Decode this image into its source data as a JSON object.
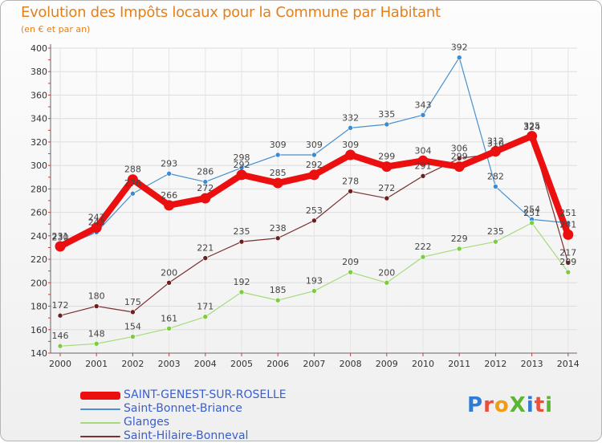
{
  "title": "Evolution des Impôts locaux pour la Commune par Habitant",
  "subtitle": "(en € et par an)",
  "logo": {
    "text": "ProXiti",
    "colors": [
      "#2f7bd6",
      "#e8503a",
      "#f39c12",
      "#5bb531",
      "#2f7bd6",
      "#e8503a",
      "#5bb531"
    ]
  },
  "chart_data": {
    "type": "line",
    "x": [
      "2000",
      "2001",
      "2002",
      "2003",
      "2004",
      "2005",
      "2006",
      "2007",
      "2008",
      "2009",
      "2010",
      "2011",
      "2012",
      "2013",
      "2014"
    ],
    "ylim": [
      140,
      400
    ],
    "yticks": [
      140,
      160,
      180,
      200,
      220,
      240,
      260,
      280,
      300,
      320,
      340,
      360,
      380,
      400
    ],
    "grid": true,
    "legend_position": "bottom-left",
    "series": [
      {
        "name": "Saint-Bonnet-Briance",
        "color": "#4a90cf",
        "marker": "#3a8ad6",
        "values": [
          230,
          243,
          276,
          293,
          286,
          298,
          309,
          309,
          332,
          335,
          343,
          392,
          282,
          254,
          251
        ],
        "labels": [
          "230",
          "243",
          "276",
          "293",
          "286",
          "298",
          "309",
          "309",
          "332",
          "335",
          "343",
          "392",
          "282",
          "254",
          "251"
        ]
      },
      {
        "name": "Glanges",
        "color": "#a6db7c",
        "marker": "#7ccc40",
        "values": [
          146,
          148,
          154,
          161,
          171,
          192,
          185,
          193,
          209,
          200,
          222,
          229,
          235,
          251,
          209
        ],
        "labels": [
          "146",
          "148",
          "154",
          "161",
          "171",
          "192",
          "185",
          "193",
          "209",
          "200",
          "222",
          "229",
          "235",
          "251",
          "209"
        ]
      },
      {
        "name": "Saint-Hilaire-Bonneval",
        "color": "#7a3030",
        "marker": "#6b1f1f",
        "values": [
          172,
          180,
          175,
          200,
          221,
          235,
          238,
          253,
          278,
          272,
          291,
          306,
          310,
          324,
          217
        ],
        "labels": [
          "172",
          "180",
          "175",
          "200",
          "221",
          "235",
          "238",
          "253",
          "278",
          "272",
          "291",
          "306",
          "310",
          "324",
          "217"
        ]
      },
      {
        "name": "SAINT-GENEST-SUR-ROSELLE",
        "color": "#ec0f0f",
        "marker": "#ec0f0f",
        "values": [
          231,
          247,
          288,
          266,
          272,
          292,
          285,
          292,
          309,
          299,
          304,
          299,
          312,
          325,
          241
        ],
        "labels": [
          "231",
          "247",
          "288",
          "266",
          "272",
          "292",
          "285",
          "292",
          "309",
          "299",
          "304",
          "299",
          "312",
          "325",
          "241"
        ]
      }
    ],
    "legend_order": [
      "SAINT-GENEST-SUR-ROSELLE",
      "Saint-Bonnet-Briance",
      "Glanges",
      "Saint-Hilaire-Bonneval"
    ]
  }
}
